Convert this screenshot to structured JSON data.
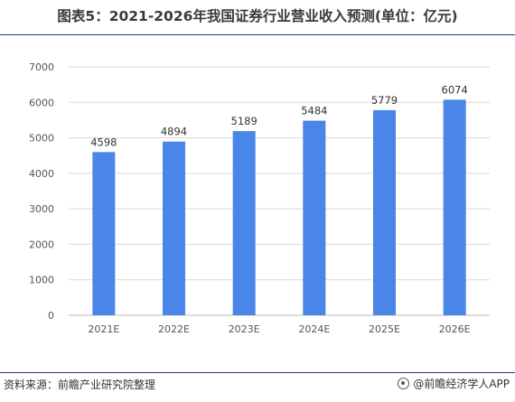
{
  "page": {
    "title": "图表5：2021-2026年我国证券行业营业收入预测(单位：亿元)",
    "source": "资料来源：前瞻产业研究院整理",
    "brand": "@前瞻经济学人APP",
    "brand_icon": "brand-logo-icon"
  },
  "colors": {
    "bar": "#4a86e8",
    "grid": "#d9d9d9",
    "axis": "#bfbfbf",
    "rule": "#1f3c88"
  },
  "chart_data": {
    "type": "bar",
    "title": "图表5：2021-2026年我国证券行业营业收入预测(单位：亿元)",
    "categories": [
      "2021E",
      "2022E",
      "2023E",
      "2024E",
      "2025E",
      "2026E"
    ],
    "values": [
      4598,
      4894,
      5189,
      5484,
      5779,
      6074
    ],
    "value_labels": [
      "4598",
      "4894",
      "5189",
      "5484",
      "5779",
      "6074"
    ],
    "ylim": [
      0,
      7000
    ],
    "yticks": [
      0,
      1000,
      2000,
      3000,
      4000,
      5000,
      6000,
      7000
    ],
    "ytick_labels": [
      "0",
      "1000",
      "2000",
      "3000",
      "4000",
      "5000",
      "6000",
      "7000"
    ],
    "grid": true,
    "legend": "none"
  }
}
